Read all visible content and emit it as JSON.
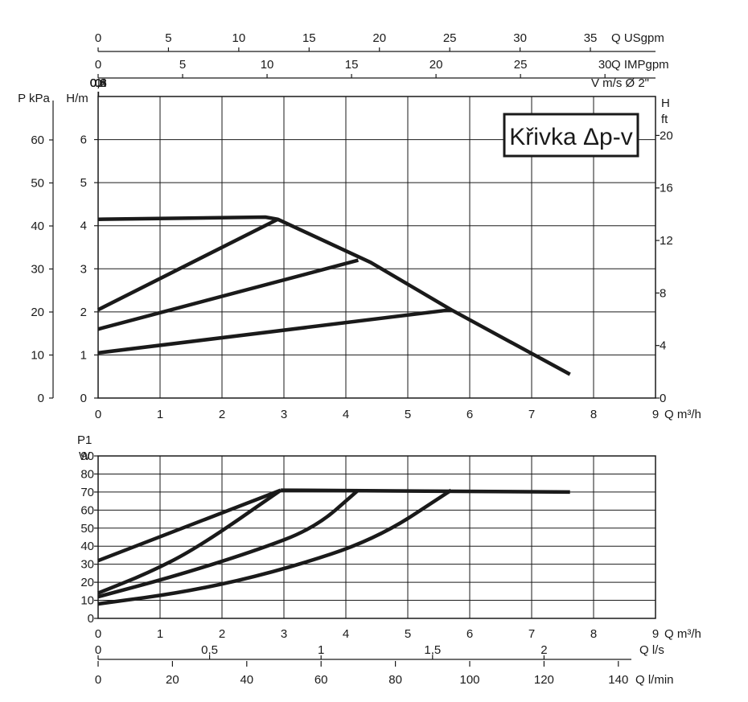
{
  "chart_data": [
    {
      "type": "line",
      "title": "Křivka Δp-v",
      "x_label": "Q m³/h",
      "x_ticks": [
        "0",
        "1",
        "2",
        "3",
        "4",
        "5",
        "6",
        "7",
        "8",
        "9"
      ],
      "xlim": [
        0,
        9
      ],
      "y_left_inner": {
        "label": "H/m",
        "ticks": [
          "0",
          "1",
          "2",
          "3",
          "4",
          "5",
          "6"
        ],
        "ylim": [
          0,
          7
        ]
      },
      "y_left_outer": {
        "label": "P kPa",
        "ticks": [
          "0",
          "10",
          "20",
          "30",
          "40",
          "50",
          "60"
        ]
      },
      "y_right": {
        "label_top": "H",
        "label_bottom": "ft",
        "ticks": [
          "0",
          "4",
          "8",
          "12",
          "16",
          "20"
        ]
      },
      "top_axes": [
        {
          "label": "Q USgpm",
          "ticks": [
            "0",
            "5",
            "10",
            "15",
            "20",
            "25",
            "30",
            "35"
          ]
        },
        {
          "label": "Q IMPgpm",
          "ticks": [
            "0",
            "5",
            "10",
            "15",
            "20",
            "25",
            "30"
          ]
        },
        {
          "label": "V m/s Ø 2\"",
          "ticks": [
            "0",
            "0,2",
            "0,4",
            "0,6",
            "0,8",
            "1"
          ]
        }
      ],
      "grid": true,
      "series": [
        {
          "points": [
            [
              0,
              4.15
            ],
            [
              2.7,
              4.2
            ],
            [
              2.9,
              4.15
            ],
            [
              4.4,
              3.15
            ],
            [
              5.7,
              2.05
            ],
            [
              7.62,
              0.55
            ]
          ]
        },
        {
          "points": [
            [
              0,
              2.05
            ],
            [
              2.9,
              4.15
            ]
          ]
        },
        {
          "points": [
            [
              0,
              1.6
            ],
            [
              4.2,
              3.2
            ]
          ]
        },
        {
          "points": [
            [
              0,
              1.05
            ],
            [
              5.7,
              2.05
            ]
          ]
        }
      ]
    },
    {
      "type": "line",
      "y_label_top": "P1",
      "y_label_bottom": "W",
      "x_label": "Q m³/h",
      "x_ticks": [
        "0",
        "1",
        "2",
        "3",
        "4",
        "5",
        "6",
        "7",
        "8",
        "9"
      ],
      "xlim": [
        0,
        9
      ],
      "y_ticks": [
        "0",
        "10",
        "20",
        "30",
        "40",
        "50",
        "60",
        "70",
        "80",
        "90"
      ],
      "ylim": [
        0,
        90
      ],
      "bottom_axes": [
        {
          "label": "Q l/s",
          "ticks": [
            "0",
            "0,5",
            "1",
            "1,5",
            "2"
          ]
        },
        {
          "label": "Q l/min",
          "ticks": [
            "0",
            "20",
            "40",
            "60",
            "80",
            "100",
            "120",
            "140"
          ]
        }
      ],
      "grid": true,
      "series": [
        {
          "points": [
            [
              2.95,
              71
            ],
            [
              7.62,
              70
            ]
          ]
        },
        {
          "points": [
            [
              0,
              32
            ],
            [
              2.95,
              71
            ]
          ]
        },
        {
          "points": [
            [
              0,
              14
            ],
            [
              0.8,
              25
            ],
            [
              1.6,
              39
            ],
            [
              2.95,
              71
            ]
          ]
        },
        {
          "points": [
            [
              0,
              12
            ],
            [
              1.2,
              23
            ],
            [
              2.5,
              37
            ],
            [
              3.5,
              50
            ],
            [
              4.2,
              71
            ]
          ]
        },
        {
          "points": [
            [
              0,
              8
            ],
            [
              1.5,
              15
            ],
            [
              3,
              27
            ],
            [
              4.5,
              44
            ],
            [
              5.7,
              71
            ]
          ]
        }
      ]
    }
  ]
}
